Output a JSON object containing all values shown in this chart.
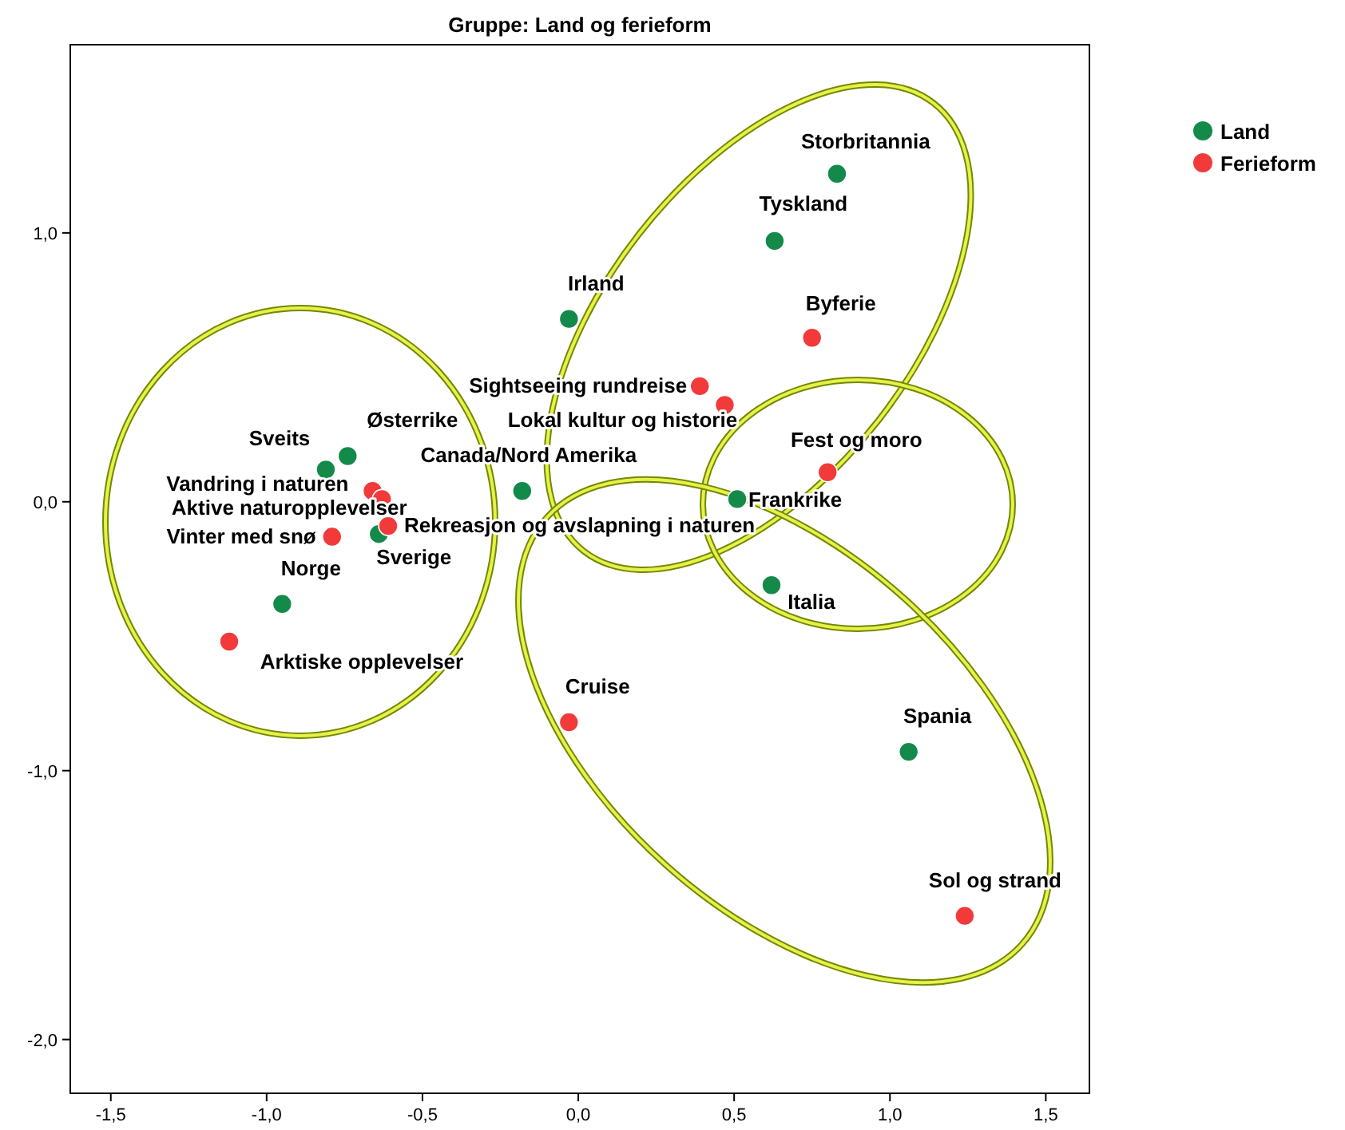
{
  "chart_data": {
    "type": "scatter",
    "title": "Gruppe: Land og ferieform",
    "marker": "circle",
    "legend": "top right",
    "grid": false,
    "xlim": [
      -1.63,
      1.64
    ],
    "ylim": [
      -2.2,
      1.7
    ],
    "xticks": [
      {
        "value": -1.5,
        "label": "-1,5"
      },
      {
        "value": -1,
        "label": "-1,0"
      },
      {
        "value": -0.5,
        "label": "-0,5"
      },
      {
        "value": 0,
        "label": "0,0"
      },
      {
        "value": 0.5,
        "label": "0,5"
      },
      {
        "value": 1,
        "label": "1,0"
      },
      {
        "value": 1.5,
        "label": "1,5"
      }
    ],
    "yticks": [
      {
        "value": -2,
        "label": "-2,0"
      },
      {
        "value": -1,
        "label": "-1,0"
      },
      {
        "value": 0,
        "label": "0,0"
      },
      {
        "value": 1,
        "label": "1,0"
      }
    ],
    "series": [
      {
        "name": "Land",
        "color": "#138a4a",
        "x": [
          0.83,
          0.63,
          -0.03,
          -0.18,
          0.51,
          0.62,
          1.06,
          -0.81,
          -0.74,
          -0.64,
          -0.95
        ],
        "values": [
          1.22,
          0.97,
          0.68,
          0.04,
          0.01,
          -0.31,
          -0.93,
          0.12,
          0.17,
          -0.12,
          -0.38
        ]
      },
      {
        "name": "Ferieform",
        "color": "#f23a3a",
        "x": [
          0.75,
          0.39,
          0.47,
          0.8,
          -0.03,
          1.24,
          -0.66,
          -0.63,
          -0.79,
          -0.61,
          -1.12
        ],
        "values": [
          0.61,
          0.43,
          0.36,
          0.11,
          -0.82,
          -1.54,
          0.04,
          0.01,
          -0.13,
          -0.09,
          -0.52
        ]
      }
    ],
    "annotations": [
      {
        "text": "Storbritannia",
        "x": 0.83,
        "y": 1.22
      },
      {
        "text": "Tyskland",
        "x": 0.63,
        "y": 0.97
      },
      {
        "text": "Irland",
        "x": -0.03,
        "y": 0.68
      },
      {
        "text": "Canada/Nord Amerika",
        "x": -0.18,
        "y": 0.04
      },
      {
        "text": "Frankrike",
        "x": 0.51,
        "y": 0.01
      },
      {
        "text": "Italia",
        "x": 0.62,
        "y": -0.31
      },
      {
        "text": "Spania",
        "x": 1.06,
        "y": -0.93
      },
      {
        "text": "Sveits",
        "x": -0.81,
        "y": 0.12
      },
      {
        "text": "Østerrike",
        "x": -0.74,
        "y": 0.17
      },
      {
        "text": "Sverige",
        "x": -0.64,
        "y": -0.12
      },
      {
        "text": "Norge",
        "x": -0.95,
        "y": -0.38
      },
      {
        "text": "Byferie",
        "x": 0.75,
        "y": 0.61
      },
      {
        "text": "Sightseeing rundreise",
        "x": 0.39,
        "y": 0.43
      },
      {
        "text": "Lokal kultur og historie",
        "x": 0.47,
        "y": 0.36
      },
      {
        "text": "Fest og moro",
        "x": 0.8,
        "y": 0.11
      },
      {
        "text": "Cruise",
        "x": -0.03,
        "y": -0.82
      },
      {
        "text": "Sol og strand",
        "x": 1.24,
        "y": -1.54
      },
      {
        "text": "Vandring i naturen",
        "x": -0.66,
        "y": 0.04
      },
      {
        "text": "Aktive naturopplevelser",
        "x": -0.63,
        "y": 0.01
      },
      {
        "text": "Vinter med snø",
        "x": -0.79,
        "y": -0.13
      },
      {
        "text": "Rekreasjon og avslapning i naturen",
        "x": -0.61,
        "y": -0.09
      },
      {
        "text": "Arktiske opplevelser",
        "x": -1.12,
        "y": -0.52
      }
    ]
  }
}
